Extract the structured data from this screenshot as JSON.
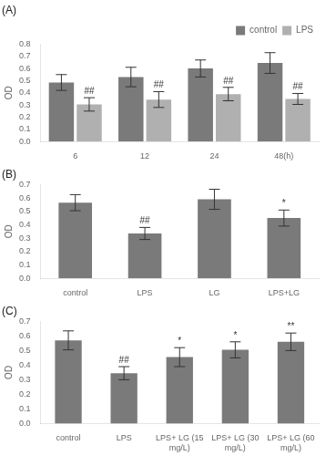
{
  "chart_data": [
    {
      "type": "bar",
      "title": "(A)",
      "ylabel": "OD",
      "categories": [
        "6",
        "12",
        "24",
        "48(h)"
      ],
      "series": [
        {
          "name": "control",
          "color": "#7a7a7a",
          "values": [
            0.485,
            0.53,
            0.6,
            0.645
          ],
          "errors": [
            0.065,
            0.08,
            0.07,
            0.085
          ]
        },
        {
          "name": "LPS",
          "color": "#b0b0b0",
          "values": [
            0.305,
            0.345,
            0.39,
            0.35
          ],
          "errors": [
            0.055,
            0.065,
            0.055,
            0.045
          ],
          "annotations": [
            "##",
            "##",
            "##",
            "##"
          ]
        }
      ],
      "ylim": [
        0,
        0.8
      ],
      "yticks": [
        {
          "value": 0,
          "label": "0.0"
        },
        0.1,
        0.2,
        0.3,
        0.4,
        0.5,
        0.6,
        0.7,
        0.8
      ],
      "grid": false,
      "legend": "upper right"
    },
    {
      "type": "bar",
      "title": "(B)",
      "ylabel": "OD",
      "categories": [
        "control",
        "LPS",
        "LG",
        "LPS+LG"
      ],
      "values": [
        0.565,
        0.335,
        0.59,
        0.45
      ],
      "errors": [
        0.06,
        0.045,
        0.075,
        0.06
      ],
      "annotations": [
        null,
        "##",
        null,
        "*"
      ],
      "color": "#7a7a7a",
      "ylim": [
        0,
        0.7
      ],
      "yticks": [
        {
          "value": 0,
          "label": "0.0"
        },
        0.1,
        0.2,
        0.3,
        0.4,
        0.5,
        0.6,
        0.7
      ],
      "grid": false
    },
    {
      "type": "bar",
      "title": "(C)",
      "ylabel": "OD",
      "categories": [
        "control",
        "LPS",
        "LPS+ LG (15\nmg/L)",
        "LPS+ LG (30\nmg/L)",
        "LPS+ LG (60\nmg/L)"
      ],
      "values": [
        0.57,
        0.345,
        0.455,
        0.505,
        0.56
      ],
      "errors": [
        0.065,
        0.045,
        0.065,
        0.055,
        0.06
      ],
      "annotations": [
        null,
        "##",
        "*",
        "*",
        "**"
      ],
      "color": "#7a7a7a",
      "ylim": [
        0,
        0.7
      ],
      "yticks": [
        {
          "value": 0,
          "label": "0.0"
        },
        0.1,
        0.2,
        0.3,
        0.4,
        0.5,
        0.6,
        0.7
      ],
      "grid": false
    }
  ]
}
